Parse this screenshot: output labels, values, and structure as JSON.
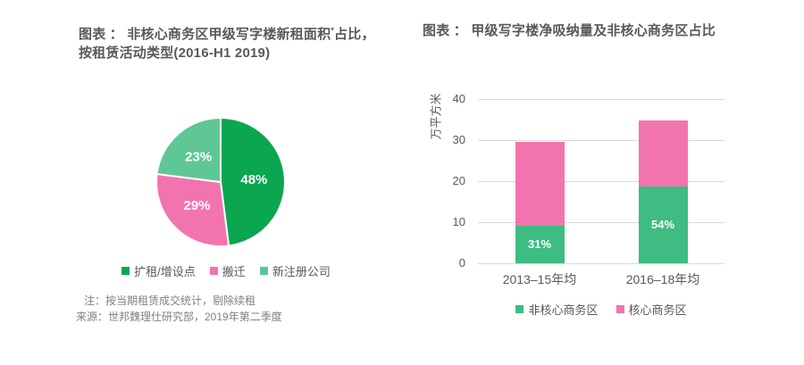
{
  "left_chart": {
    "title_prefix": "图表 ： 非核心商务区甲级写字楼新租面积",
    "title_sup": "*",
    "title_suffix": "占比，",
    "title_line2": "按租赁活动类型(2016-H1 2019)",
    "note": "注：按当期租赁成交统计，剔除续租",
    "source": "来源：世邦魏理仕研究部，2019年第二季度"
  },
  "right_chart": {
    "title": "图表 ： 甲级写字楼净吸纳量及非核心商务区占比"
  },
  "chart_data": [
    {
      "type": "pie",
      "title": "非核心商务区甲级写字楼新租面积*占比，按租赁活动类型(2016-H1 2019)",
      "labels": [
        "扩租/增设点",
        "搬迁",
        "新注册公司"
      ],
      "values": [
        48,
        29,
        23
      ],
      "data_labels": [
        "48%",
        "29%",
        "23%"
      ],
      "colors": [
        "#0AA650",
        "#F274AE",
        "#5EC795"
      ],
      "start_angle_deg": 0,
      "direction": "clockwise",
      "legend_position": "bottom"
    },
    {
      "type": "bar",
      "stacked": true,
      "title": "甲级写字楼净吸纳量及非核心商务区占比",
      "categories": [
        "2013–15年均",
        "2016–18年均"
      ],
      "series": [
        {
          "name": "非核心商务区",
          "color": "#3FBC81",
          "values": [
            9.2,
            18.8
          ],
          "segment_labels": [
            "31%",
            "54%"
          ]
        },
        {
          "name": "核心商务区",
          "color": "#F274AE",
          "values": [
            20.3,
            16.0
          ],
          "segment_labels": [
            "",
            ""
          ]
        }
      ],
      "totals": [
        29.5,
        34.8
      ],
      "ylabel": "万平方米",
      "ylim": [
        0,
        40
      ],
      "yticks": [
        0,
        10,
        20,
        30,
        40
      ],
      "grid": true,
      "legend_position": "bottom"
    }
  ]
}
